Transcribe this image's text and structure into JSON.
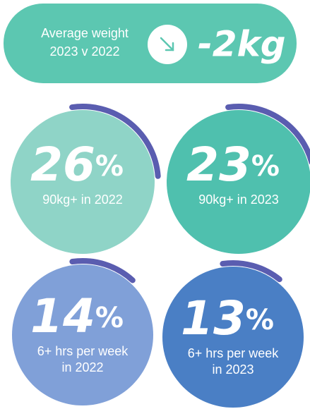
{
  "banner": {
    "label_lines": [
      "Average weight",
      "2023 v 2022"
    ],
    "value": "-2kg"
  },
  "stats": [
    {
      "value": 26,
      "unit": "%",
      "caption_lines": [
        "90kg+ in 2022"
      ],
      "color": "#8fd4c7"
    },
    {
      "value": 23,
      "unit": "%",
      "caption_lines": [
        "90kg+ in 2023"
      ],
      "color": "#4fc0ae"
    },
    {
      "value": 14,
      "unit": "%",
      "caption_lines": [
        "6+ hrs per week",
        "in 2022"
      ],
      "color": "#80a0d8"
    },
    {
      "value": 13,
      "unit": "%",
      "caption_lines": [
        "6+ hrs per week",
        "in 2023"
      ],
      "color": "#4a7fc5"
    }
  ],
  "arc_color": "#5a5db0"
}
